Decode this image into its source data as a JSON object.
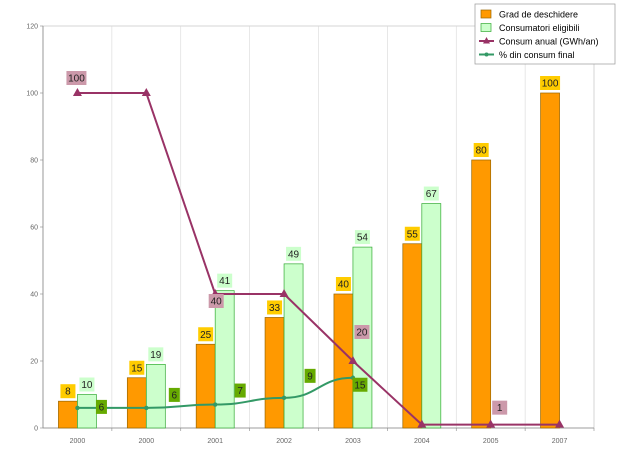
{
  "chart_data": {
    "type": "bar",
    "categories": [
      "2000",
      "2000",
      "2001",
      "2002",
      "2003",
      "2004",
      "2005",
      "2007"
    ],
    "x_tick_labels": [
      "2000",
      "2000",
      "2001",
      "2002",
      "2003",
      "2004",
      "2005",
      "2007"
    ],
    "ylim": [
      0,
      120
    ],
    "y_ticks": [
      0,
      20,
      40,
      60,
      80,
      100,
      120
    ],
    "y_tick_labels": [
      "0",
      "20",
      "40",
      "60",
      "80",
      "100",
      "120"
    ],
    "grid": "vertical",
    "legend_position": "top-right",
    "series": [
      {
        "name": "Grad de deschidere",
        "kind": "bar",
        "values": [
          8,
          15,
          25,
          33,
          40,
          55,
          80,
          100
        ],
        "labels": [
          "8",
          "15",
          "25",
          "33",
          "40",
          "55",
          "80",
          "100"
        ],
        "color": "#ff9900",
        "label_bg": "#ffcc00"
      },
      {
        "name": "Consumatori eligibili",
        "kind": "bar",
        "values": [
          10,
          19,
          41,
          49,
          54,
          67,
          null,
          null
        ],
        "labels": [
          "10",
          "19",
          "41",
          "49",
          "54",
          "67",
          null,
          null
        ],
        "color": "#ccffcc",
        "stroke": "#33aa33",
        "label_bg": "#ccffcc"
      },
      {
        "name": "Consum anual (GWh/an)",
        "kind": "line",
        "values": [
          100,
          100,
          40,
          40,
          20,
          1,
          1,
          1
        ],
        "labels": [
          "100",
          null,
          "40",
          null,
          "20",
          null,
          "1",
          null
        ],
        "color": "#993366",
        "label_bg": "#cc99aa"
      },
      {
        "name": "% din consum final",
        "kind": "line",
        "values": [
          6,
          6,
          7,
          9,
          15,
          null,
          null,
          null
        ],
        "labels": [
          "6",
          "6",
          "7",
          "9",
          "15",
          null,
          null,
          null
        ],
        "color": "#339966",
        "label_bg": "#66aa00"
      }
    ]
  }
}
